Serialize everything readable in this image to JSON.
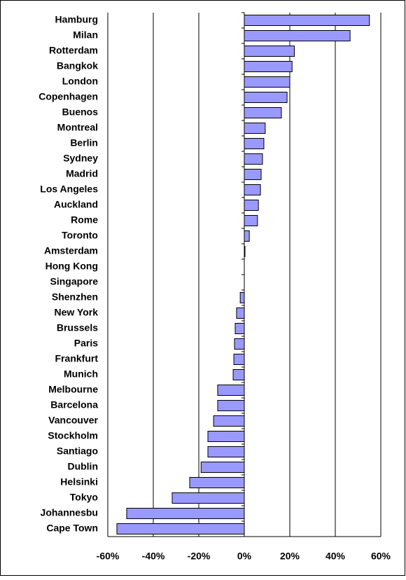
{
  "chart_data": {
    "type": "hbar",
    "categories": [
      "Hamburg",
      "Milan",
      "Rotterdam",
      "Bangkok",
      "London",
      "Copenhagen",
      "Buenos",
      "Montreal",
      "Berlin",
      "Sydney",
      "Madrid",
      "Los Angeles",
      "Auckland",
      "Rome",
      "Toronto",
      "Amsterdam",
      "Hong Kong",
      "Singapore",
      "Shenzhen",
      "New York",
      "Brussels",
      "Paris",
      "Frankfurt",
      "Munich",
      "Melbourne",
      "Barcelona",
      "Vancouver",
      "Stockholm",
      "Santiago",
      "Dublin",
      "Helsinki",
      "Tokyo",
      "Johannesbu",
      "Cape Town"
    ],
    "values": [
      55,
      46.5,
      22,
      21,
      20,
      18.8,
      16.3,
      9.2,
      8.6,
      8,
      7.4,
      7.1,
      6.2,
      5.8,
      2.2,
      0.3,
      0,
      0,
      -1.8,
      -3.4,
      -4,
      -4.3,
      -4.6,
      -4.9,
      -11.7,
      -11.7,
      -13.5,
      -16,
      -16,
      -19,
      -24,
      -31.7,
      -51.7,
      -56
    ],
    "color": "#9999ff",
    "xlim": [
      -60,
      60
    ],
    "xticks": [
      {
        "value": -60,
        "label": "-60%"
      },
      {
        "value": -40,
        "label": "-40%"
      },
      {
        "value": -20,
        "label": "-20%"
      },
      {
        "value": 0,
        "label": "0%"
      },
      {
        "value": 20,
        "label": "20%"
      },
      {
        "value": 40,
        "label": "40%"
      },
      {
        "value": 60,
        "label": "60%"
      }
    ],
    "grid": true
  }
}
